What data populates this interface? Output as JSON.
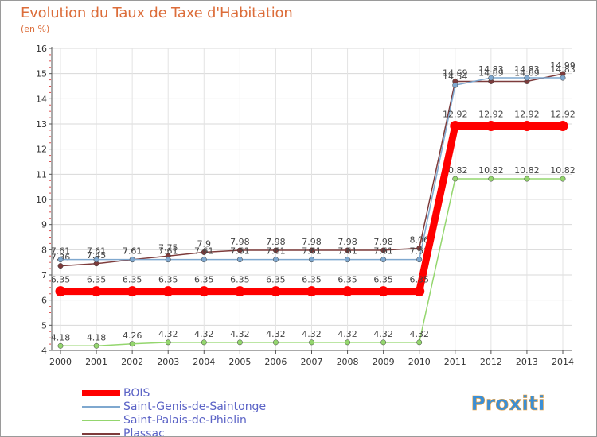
{
  "title": "Evolution du Taux de Taxe d'Habitation",
  "subtitle": "(en %)",
  "logo_text": "Proxiti",
  "chart_data": {
    "type": "line",
    "title": "Evolution du Taux de Taxe d'Habitation",
    "ylabel": "(en %)",
    "xlabel": "",
    "ylim": [
      4,
      16
    ],
    "yticks": [
      4,
      5,
      6,
      7,
      8,
      9,
      10,
      11,
      12,
      13,
      14,
      15,
      16
    ],
    "x": [
      "2000",
      "2001",
      "2002",
      "2003",
      "2004",
      "2005",
      "2006",
      "2007",
      "2008",
      "2009",
      "2010",
      "2011",
      "2012",
      "2013",
      "2014"
    ],
    "grid": true,
    "legend_position": "bottom-left",
    "series": [
      {
        "name": "Saint-Palais-de-Phiolin",
        "color": "#94d66e",
        "values": [
          4.18,
          4.18,
          4.26,
          4.32,
          4.32,
          4.32,
          4.32,
          4.32,
          4.32,
          4.32,
          4.32,
          10.82,
          10.82,
          10.82,
          10.82
        ],
        "labels": [
          "4.18",
          "4.18",
          "4.26",
          "4.32",
          "4.32",
          "4.32",
          "4.32",
          "4.32",
          "4.32",
          "4.32",
          "4.32",
          "10.82",
          "10.82",
          "10.82",
          "10.82"
        ]
      },
      {
        "name": "Plassac",
        "color": "#7d3b3b",
        "values": [
          7.36,
          7.45,
          7.61,
          7.75,
          7.9,
          7.98,
          7.98,
          7.98,
          7.98,
          7.98,
          8.06,
          14.69,
          14.69,
          14.69,
          14.99
        ],
        "labels": [
          "7.36",
          "7.45",
          "7.61",
          "7.75",
          "7.9",
          "7.98",
          "7.98",
          "7.98",
          "7.98",
          "7.98",
          "8.06",
          "14.69",
          "14.69",
          "14.69",
          "14.99"
        ]
      },
      {
        "name": "Saint-Genis-de-Saintonge",
        "color": "#7fa8cf",
        "values": [
          7.61,
          7.61,
          7.61,
          7.61,
          7.61,
          7.61,
          7.61,
          7.61,
          7.61,
          7.61,
          7.61,
          14.54,
          14.83,
          14.83,
          14.83
        ],
        "labels": [
          "7.61",
          "7.61",
          "7.61",
          "7.61",
          "7.61",
          "7.61",
          "7.61",
          "7.61",
          "7.61",
          "7.61",
          "7.61",
          "14.54",
          "14.83",
          "14.83",
          "14.83"
        ]
      },
      {
        "name": "BOIS",
        "color": "#ff0000",
        "values": [
          6.35,
          6.35,
          6.35,
          6.35,
          6.35,
          6.35,
          6.35,
          6.35,
          6.35,
          6.35,
          6.35,
          12.92,
          12.92,
          12.92,
          12.92
        ],
        "labels": [
          "6.35",
          "6.35",
          "6.35",
          "6.35",
          "6.35",
          "6.35",
          "6.35",
          "6.35",
          "6.35",
          "6.35",
          "6.35",
          "12.92",
          "12.92",
          "12.92",
          "12.92"
        ]
      }
    ],
    "legend": [
      {
        "name": "BOIS",
        "color": "#ff0000",
        "thick": true
      },
      {
        "name": "Saint-Genis-de-Saintonge",
        "color": "#7fa8cf",
        "thick": false
      },
      {
        "name": "Saint-Palais-de-Phiolin",
        "color": "#94d66e",
        "thick": false
      },
      {
        "name": "Plassac",
        "color": "#7d3b3b",
        "thick": false
      }
    ]
  }
}
